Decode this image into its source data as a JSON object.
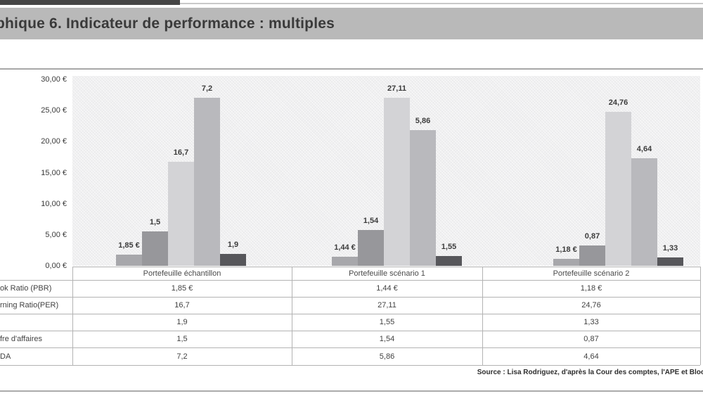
{
  "title": {
    "text": "phique 6. Indicateur de performance : multiples"
  },
  "chart_data": {
    "type": "bar",
    "title": "phique 6. Indicateur de performance : multiples",
    "categories": [
      "Portefeuille échantillon",
      "Portefeuille scénario 1",
      "Portefeuille scénario 2"
    ],
    "y_ticks": [
      "30,00 €",
      "25,00 €",
      "20,00 €",
      "15,00 €",
      "10,00 €",
      "5,00 €",
      "0,00 €"
    ],
    "ylim": [
      0,
      30
    ],
    "y_tick_step": 5,
    "grid": false,
    "legend": "none",
    "series": [
      {
        "name": "ok Ratio (PBR)",
        "values": [
          1.85,
          1.44,
          1.18
        ],
        "labels": [
          "1,85 €",
          "1,44 €",
          "1,18 €"
        ],
        "display_heights": [
          1.85,
          1.44,
          1.18
        ],
        "color": "#a7a7ab"
      },
      {
        "name": "fre d'affaires",
        "values": [
          1.5,
          1.54,
          0.87
        ],
        "labels": [
          "1,5",
          "1,54",
          "0,87"
        ],
        "display_heights": [
          5.6,
          5.8,
          3.3
        ],
        "color": "#97979b"
      },
      {
        "name": "rning Ratio(PER)",
        "values": [
          16.7,
          27.11,
          24.76
        ],
        "labels": [
          "16,7",
          "27,11",
          "24,76"
        ],
        "display_heights": [
          16.7,
          27.11,
          24.76
        ],
        "color": "#d3d3d6"
      },
      {
        "name": "DA",
        "values": [
          7.2,
          5.86,
          4.64
        ],
        "labels": [
          "7,2",
          "5,86",
          "4,64"
        ],
        "display_heights": [
          27.0,
          21.9,
          17.3
        ],
        "color": "#b9b9bd"
      },
      {
        "name": "",
        "values": [
          1.9,
          1.55,
          1.33
        ],
        "labels": [
          "1,9",
          "1,55",
          "1,33"
        ],
        "display_heights": [
          1.9,
          1.55,
          1.33
        ],
        "color": "#57575b"
      }
    ]
  },
  "table": {
    "header": [
      "",
      "Portefeuille échantillon",
      "Portefeuille scénario 1",
      "Portefeuille scénario 2"
    ],
    "rows": [
      {
        "label": "ok Ratio (PBR)",
        "values": [
          "1,85 €",
          "1,44 €",
          "1,18 €"
        ]
      },
      {
        "label": "rning Ratio(PER)",
        "values": [
          "16,7",
          "27,11",
          "24,76"
        ]
      },
      {
        "label": "",
        "values": [
          "1,9",
          "1,55",
          "1,33"
        ]
      },
      {
        "label": "fre d'affaires",
        "values": [
          "1,5",
          "1,54",
          "0,87"
        ]
      },
      {
        "label": "DA",
        "values": [
          "7,2",
          "5,86",
          "4,64"
        ]
      }
    ]
  },
  "source": {
    "text": "Source : Lisa Rodriguez, d'après la Cour des comptes, l'APE et Bloo"
  },
  "colors": {
    "title_bar": "#b9b9b9",
    "plot_background": "#f0f0f1",
    "bar_pbr": "#a7a7ab",
    "bar_ca": "#97979b",
    "bar_per": "#d3d3d6",
    "bar_ebitda": "#b9b9bd",
    "bar_dark": "#57575b",
    "table_border": "#b3b3b3",
    "text_dark": "#3a3a3a"
  }
}
